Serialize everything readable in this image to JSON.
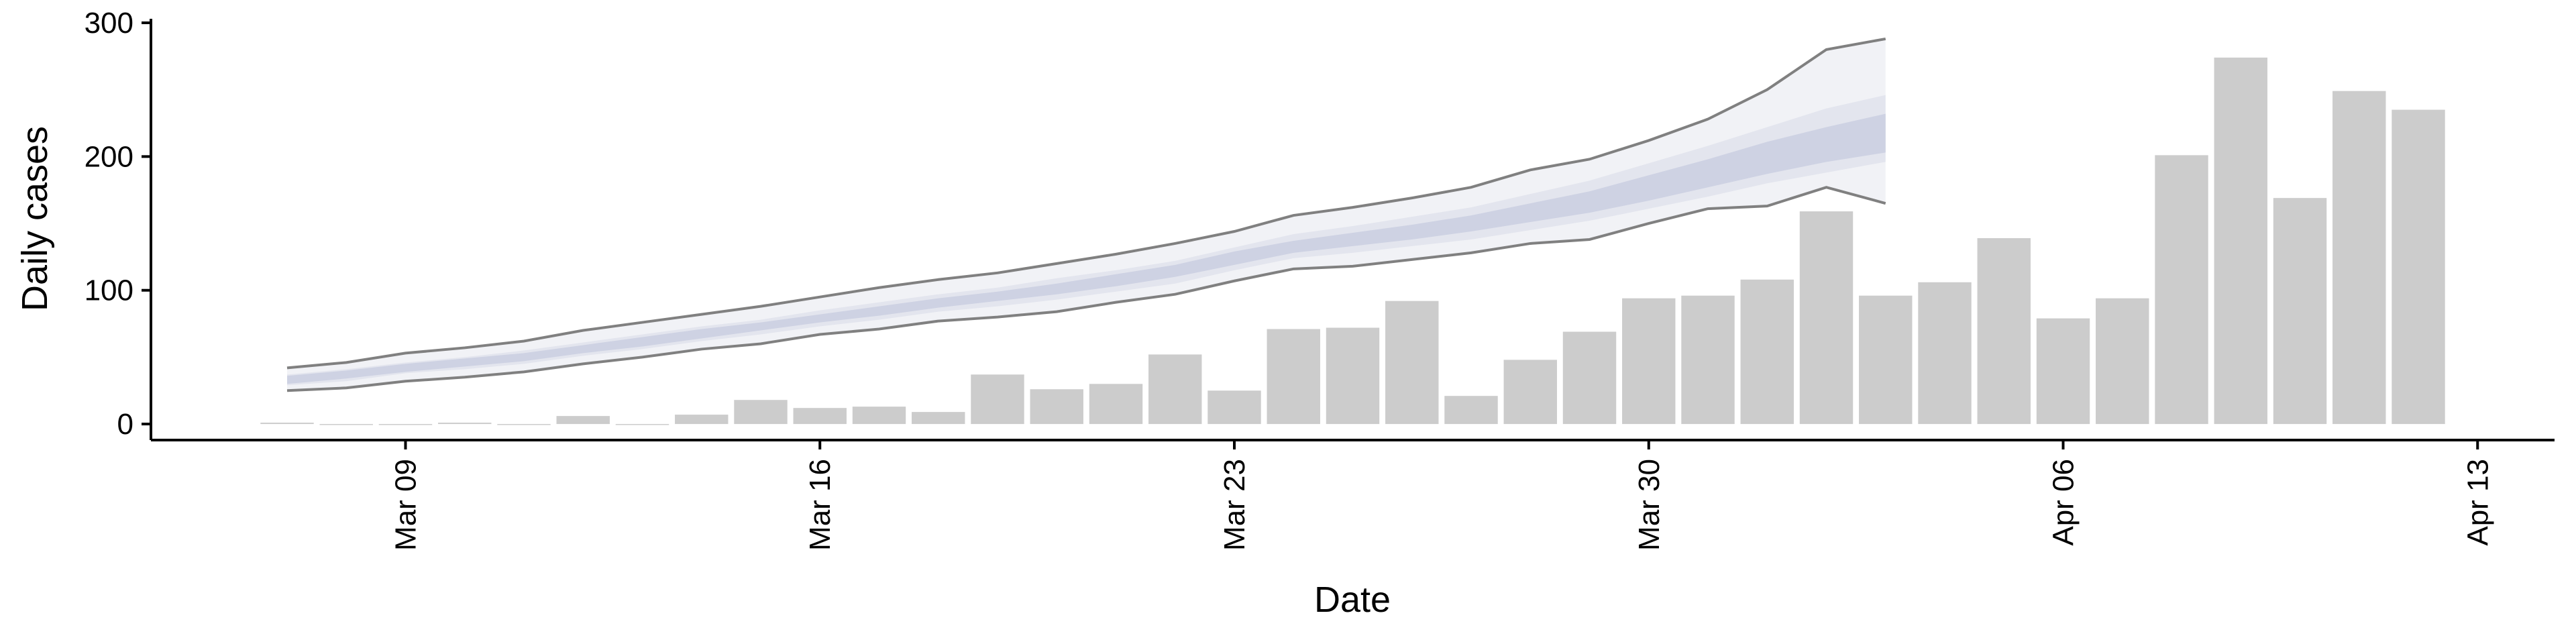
{
  "chart_data": {
    "type": "bar",
    "xlabel": "Date",
    "ylabel": "Daily cases",
    "categories": [
      "Mar 07",
      "Mar 08",
      "Mar 09",
      "Mar 10",
      "Mar 11",
      "Mar 12",
      "Mar 13",
      "Mar 14",
      "Mar 15",
      "Mar 16",
      "Mar 17",
      "Mar 18",
      "Mar 19",
      "Mar 20",
      "Mar 21",
      "Mar 22",
      "Mar 23",
      "Mar 24",
      "Mar 25",
      "Mar 26",
      "Mar 27",
      "Mar 28",
      "Mar 29",
      "Mar 30",
      "Mar 31",
      "Apr 01",
      "Apr 02",
      "Apr 03",
      "Apr 04",
      "Apr 05",
      "Apr 06",
      "Apr 07",
      "Apr 08",
      "Apr 09",
      "Apr 10",
      "Apr 11",
      "Apr 12",
      "Apr 13"
    ],
    "values": [
      1,
      0,
      0,
      1,
      0,
      6,
      0,
      7,
      18,
      12,
      13,
      9,
      37,
      26,
      30,
      52,
      25,
      71,
      72,
      92,
      21,
      48,
      69,
      94,
      96,
      108,
      159,
      96,
      106,
      139,
      79,
      94,
      201,
      274,
      169,
      249,
      235,
      null
    ],
    "color": "#cccccc",
    "line_color": "#808080",
    "bands": [
      {
        "color": "#f1f2f6",
        "lower": [
          25,
          27,
          32,
          35,
          39,
          45,
          50,
          56,
          60,
          67,
          71,
          77,
          80,
          84,
          91,
          97,
          107,
          116,
          118,
          123,
          128,
          135,
          138,
          150,
          161,
          163,
          177,
          165,
          null,
          null,
          null,
          null,
          null,
          null,
          null,
          null,
          null,
          null
        ],
        "upper": [
          42,
          46,
          53,
          57,
          62,
          70,
          76,
          82,
          88,
          95,
          102,
          108,
          113,
          120,
          127,
          135,
          144,
          156,
          162,
          169,
          177,
          190,
          198,
          212,
          228,
          250,
          280,
          288,
          null,
          null,
          null,
          null,
          null,
          null,
          null,
          null,
          null,
          null
        ]
      },
      {
        "color": "#e3e5ee",
        "lower": [
          29,
          32,
          38,
          41,
          45,
          51,
          56,
          62,
          67,
          73,
          78,
          84,
          88,
          93,
          99,
          105,
          115,
          124,
          128,
          133,
          138,
          145,
          152,
          161,
          170,
          180,
          188,
          196,
          null,
          null,
          null,
          null,
          null,
          null,
          null,
          null,
          null,
          null
        ],
        "upper": [
          37,
          41,
          46,
          50,
          55,
          61,
          67,
          73,
          78,
          85,
          91,
          97,
          102,
          109,
          115,
          122,
          132,
          142,
          148,
          155,
          162,
          172,
          182,
          195,
          208,
          222,
          236,
          246,
          null,
          null,
          null,
          null,
          null,
          null,
          null,
          null,
          null,
          null
        ]
      },
      {
        "color": "#ced2e3",
        "lower": [
          30,
          34,
          39,
          43,
          47,
          53,
          58,
          64,
          70,
          76,
          81,
          87,
          92,
          97,
          103,
          110,
          119,
          128,
          133,
          138,
          144,
          151,
          158,
          167,
          177,
          187,
          196,
          203,
          null,
          null,
          null,
          null,
          null,
          null,
          null,
          null,
          null,
          null
        ],
        "upper": [
          36,
          40,
          45,
          49,
          53,
          59,
          65,
          71,
          76,
          82,
          88,
          94,
          99,
          105,
          112,
          119,
          129,
          137,
          143,
          149,
          156,
          165,
          174,
          186,
          198,
          211,
          222,
          232,
          null,
          null,
          null,
          null,
          null,
          null,
          null,
          null,
          null,
          null
        ]
      }
    ],
    "ylim": [
      -12,
      300
    ],
    "yticks": [
      0,
      100,
      200,
      300
    ],
    "xticks": [
      "Mar 09",
      "Mar 16",
      "Mar 23",
      "Mar 30",
      "Apr 06",
      "Apr 13"
    ]
  }
}
